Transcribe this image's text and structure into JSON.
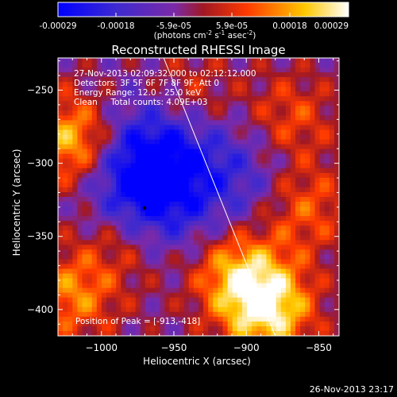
{
  "colorbar": {
    "ticks": [
      "-0.00029",
      "-0.00018",
      "-5.9e-05",
      "5.9e-05",
      "0.00018",
      "0.00029"
    ],
    "unit_main": "(photons cm",
    "unit_sup1": "-2",
    "unit_mid1": " s",
    "unit_sup2": "-1",
    "unit_mid2": " asec",
    "unit_sup3": "-2",
    "unit_end": ")"
  },
  "annotations": {
    "time_range": "27-Nov-2013 02:09:32.000 to 02:12:12.000",
    "detectors": "Detectors: 3F 5F 6F 7F 8F 9F, Att 0",
    "energy_range": "Energy Range: 12.0 - 25.0 keV",
    "clean_counts": "Clean     Total counts: 4.09E+03",
    "peak_position": "Position of Peak = [-913,-418]"
  },
  "footer": {
    "timestamp": "26-Nov-2013 23:17"
  },
  "colors": {
    "background": "#000000",
    "colormap": [
      "#0000ff",
      "#5a3fc0",
      "#7a2fae",
      "#b01818",
      "#ff6200",
      "#ffd400",
      "#ffffff"
    ]
  },
  "chart_data": {
    "type": "heatmap",
    "title": "Reconstructed RHESSI Image",
    "xlabel": "Heliocentric X (arcsec)",
    "ylabel": "Heliocentric Y (arcsec)",
    "xlim": [
      -1030,
      -836
    ],
    "ylim": [
      -418,
      -228
    ],
    "xticks": [
      -1000,
      -950,
      -900,
      -850
    ],
    "yticks": [
      -250,
      -300,
      -350,
      -400
    ],
    "xtick_labels": [
      "−1000",
      "−950",
      "−900",
      "−850"
    ],
    "ytick_labels": [
      "−250",
      "−300",
      "−350",
      "−400"
    ],
    "colorbar_range": [
      -0.00029,
      0.00029
    ],
    "peak": [
      -913,
      -418
    ],
    "limb_line": [
      [
        -957,
        -228
      ],
      [
        -880,
        -418
      ]
    ],
    "flux_sources": [
      {
        "x": -1020,
        "y": -285,
        "flux": 0.00025
      },
      {
        "x": -885,
        "y": -400,
        "flux": 0.00029
      },
      {
        "x": -905,
        "y": -375,
        "flux": 0.00022
      },
      {
        "x": -860,
        "y": -330,
        "flux": 0.00015
      },
      {
        "x": -1020,
        "y": -390,
        "flux": 0.00018
      },
      {
        "x": -985,
        "y": -350,
        "flux": 0.00014
      },
      {
        "x": -940,
        "y": -255,
        "flux": 0.00012
      },
      {
        "x": -870,
        "y": -270,
        "flux": 0.00013
      },
      {
        "x": -970,
        "y": -320,
        "flux": -0.00029
      },
      {
        "x": -960,
        "y": -285,
        "flux": -0.00016
      },
      {
        "x": -905,
        "y": -310,
        "flux": -0.00012
      }
    ]
  }
}
